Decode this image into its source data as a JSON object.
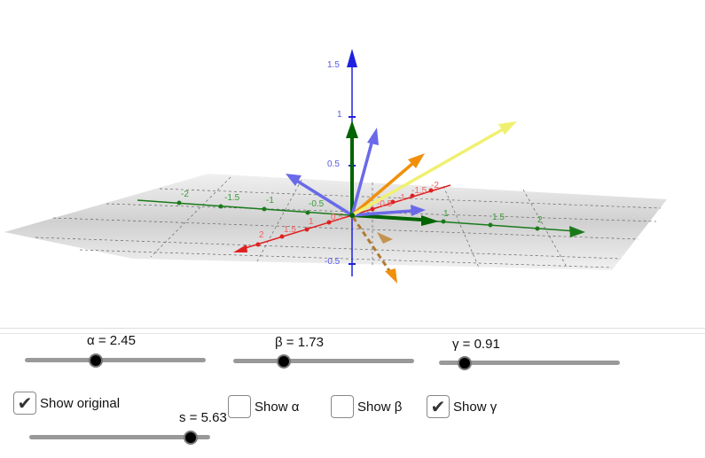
{
  "view3d": {
    "z_axis_labels": [
      "1.5",
      "1",
      "0.5",
      "-0.5"
    ],
    "y_axis_labels": [
      "-2",
      "-1.5",
      "-1",
      "-0.5",
      "1",
      "1.5",
      "2"
    ],
    "x_axis_labels": [
      "2",
      "1.5",
      "1",
      "0.5",
      "-0.5",
      "-1",
      "-1.5",
      "-2"
    ],
    "colors": {
      "x_axis": "#e02020",
      "y_axis": "#1a7a1a",
      "z_axis": "#2020e0",
      "vectors_blue": "#6a6ae8",
      "vector_orange": "#f0900a",
      "vector_yellow": "#f0f070",
      "vector_green": "#006400"
    }
  },
  "sliders": [
    {
      "name": "alpha",
      "label": "α = 2.45",
      "value": 2.45,
      "fraction": 0.39
    },
    {
      "name": "beta",
      "label": "β = 1.73",
      "value": 1.73,
      "fraction": 0.28
    },
    {
      "name": "gamma",
      "label": "γ = 0.91",
      "value": 0.91,
      "fraction": 0.14
    },
    {
      "name": "s",
      "label": "s = 5.63",
      "value": 5.63,
      "fraction": 0.89
    }
  ],
  "checkboxes": [
    {
      "label": "Show original",
      "checked": true
    },
    {
      "label": "Show α",
      "checked": false
    },
    {
      "label": "Show β",
      "checked": false
    },
    {
      "label": "Show γ",
      "checked": true
    }
  ],
  "check_glyph": "✔"
}
